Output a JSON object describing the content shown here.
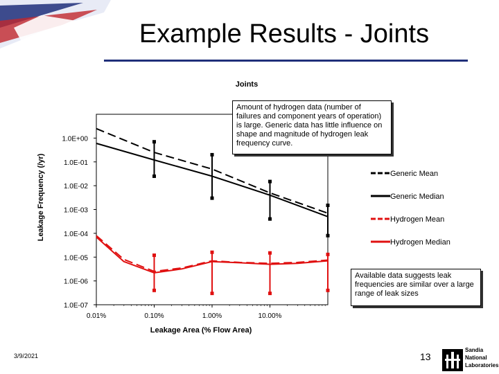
{
  "slide": {
    "title": "Example Results - Joints",
    "date": "3/9/2021",
    "page_number": "13",
    "logo_text": [
      "Sandia",
      "National",
      "Laboratories"
    ]
  },
  "chart_data": {
    "type": "line",
    "title": "Joints",
    "xlabel": "Leakage Area (% Flow Area)",
    "ylabel": "Leakage Frequency (/yr)",
    "x_scale": "log",
    "y_scale": "log",
    "xlim": [
      0.01,
      100
    ],
    "ylim": [
      1e-07,
      10
    ],
    "x_ticks": [
      {
        "value": 0.01,
        "label": "0.01%"
      },
      {
        "value": 0.1,
        "label": "0.10%"
      },
      {
        "value": 1,
        "label": "1.00%"
      },
      {
        "value": 10,
        "label": "10.00%"
      }
    ],
    "y_ticks": [
      {
        "value": 1,
        "label": "1.0E+00"
      },
      {
        "value": 0.1,
        "label": "1.0E-01"
      },
      {
        "value": 0.01,
        "label": "1.0E-02"
      },
      {
        "value": 0.001,
        "label": "1.0E-03"
      },
      {
        "value": 0.0001,
        "label": "1.0E-04"
      },
      {
        "value": 1e-05,
        "label": "1.0E-05"
      },
      {
        "value": 1e-06,
        "label": "1.0E-06"
      },
      {
        "value": 1e-07,
        "label": "1.0E-07"
      }
    ],
    "series": [
      {
        "name": "Generic Mean",
        "color": "#000000",
        "style": "dashed",
        "x": [
          0.01,
          0.1,
          1,
          10,
          100
        ],
        "y": [
          2.5,
          0.25,
          0.05,
          0.005,
          0.0007
        ]
      },
      {
        "name": "Generic Median",
        "color": "#000000",
        "style": "solid",
        "x": [
          0.01,
          0.1,
          1,
          10,
          100
        ],
        "y": [
          0.6,
          0.12,
          0.025,
          0.004,
          0.0005
        ]
      },
      {
        "name": "Hydrogen Mean",
        "color": "#e01010",
        "style": "dashed",
        "x": [
          0.01,
          0.03,
          0.1,
          0.3,
          1,
          3,
          10,
          30,
          100
        ],
        "y": [
          8e-05,
          8e-06,
          2.5e-06,
          3.5e-06,
          7e-06,
          6e-06,
          5.5e-06,
          6e-06,
          7.5e-06
        ]
      },
      {
        "name": "Hydrogen Median",
        "color": "#e01010",
        "style": "solid",
        "x": [
          0.01,
          0.03,
          0.1,
          0.3,
          1,
          3,
          10,
          30,
          100
        ],
        "y": [
          7e-05,
          6.5e-06,
          2.2e-06,
          3.2e-06,
          6.5e-06,
          5.8e-06,
          5e-06,
          5.5e-06,
          7e-06
        ]
      }
    ],
    "error_bars": [
      {
        "color": "#000000",
        "x": [
          0.1,
          1,
          10,
          100
        ],
        "low": [
          0.025,
          0.003,
          0.0004,
          8e-05
        ],
        "high": [
          0.7,
          0.2,
          0.015,
          0.0015
        ]
      },
      {
        "color": "#e01010",
        "x": [
          0.1,
          1,
          10,
          100
        ],
        "low": [
          4e-07,
          3e-07,
          3e-07,
          4e-07
        ],
        "high": [
          1.2e-05,
          1.6e-05,
          1.5e-05,
          1.3e-05
        ]
      }
    ],
    "legend_position": "right",
    "annotations": [
      "Amount of hydrogen data (number of failures and component years of operation) is large. Generic data has little influence on shape and magnitude of hydrogen leak frequency curve.",
      "Available data suggests leak frequencies are similar over a large range of leak sizes"
    ]
  }
}
